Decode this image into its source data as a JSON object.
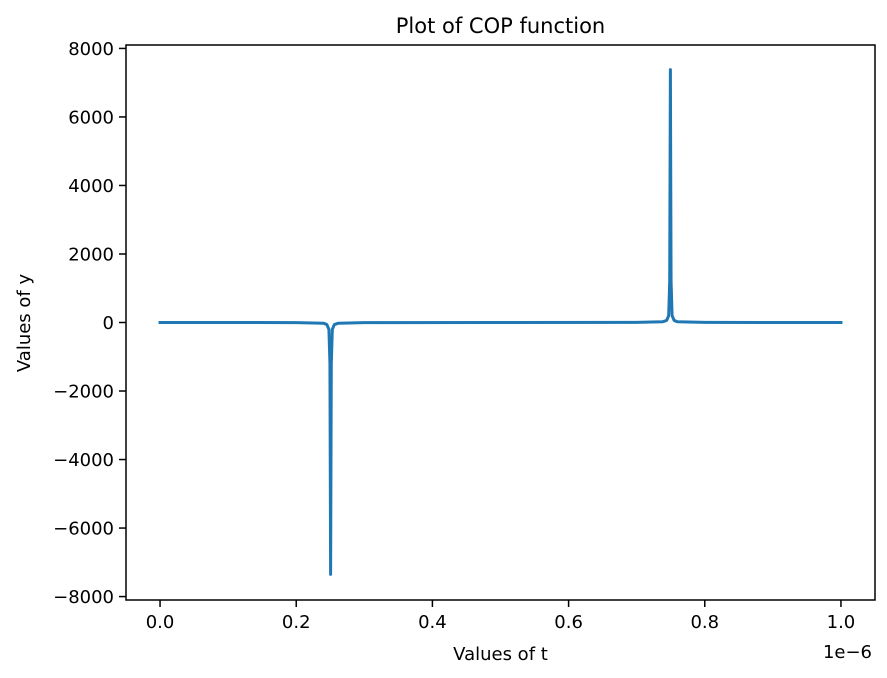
{
  "chart_data": {
    "type": "line",
    "title": "Plot of COP function",
    "xlabel": "Values of t",
    "ylabel": "Values of y",
    "x_offset_label": "1e−6",
    "xlim": [
      -0.05,
      1.05
    ],
    "ylim": [
      -8100,
      8100
    ],
    "x_ticks": [
      {
        "value": 0.0,
        "label": "0.0"
      },
      {
        "value": 0.2,
        "label": "0.2"
      },
      {
        "value": 0.4,
        "label": "0.4"
      },
      {
        "value": 0.6,
        "label": "0.6"
      },
      {
        "value": 0.8,
        "label": "0.8"
      },
      {
        "value": 1.0,
        "label": "1.0"
      }
    ],
    "y_ticks": [
      {
        "value": 8000,
        "label": "8000"
      },
      {
        "value": 6000,
        "label": "6000"
      },
      {
        "value": 4000,
        "label": "4000"
      },
      {
        "value": 2000,
        "label": "2000"
      },
      {
        "value": 0,
        "label": "0"
      },
      {
        "value": -2000,
        "label": "−2000"
      },
      {
        "value": -4000,
        "label": "−4000"
      },
      {
        "value": -6000,
        "label": "−6000"
      },
      {
        "value": -8000,
        "label": "−8000"
      }
    ],
    "grid": false,
    "series": [
      {
        "color": "#1f77b4",
        "points": [
          [
            0.0,
            0
          ],
          [
            0.1,
            0
          ],
          [
            0.2,
            -2
          ],
          [
            0.24,
            -20
          ],
          [
            0.245,
            -60
          ],
          [
            0.248,
            -200
          ],
          [
            0.2495,
            -1200
          ],
          [
            0.2505,
            -7350
          ],
          [
            0.2515,
            -1200
          ],
          [
            0.253,
            -200
          ],
          [
            0.256,
            -60
          ],
          [
            0.262,
            -20
          ],
          [
            0.3,
            -3
          ],
          [
            0.5,
            0
          ],
          [
            0.7,
            3
          ],
          [
            0.738,
            20
          ],
          [
            0.744,
            60
          ],
          [
            0.747,
            200
          ],
          [
            0.7485,
            1200
          ],
          [
            0.7495,
            7380
          ],
          [
            0.7505,
            1200
          ],
          [
            0.752,
            200
          ],
          [
            0.755,
            60
          ],
          [
            0.76,
            20
          ],
          [
            0.8,
            2
          ],
          [
            0.9,
            0
          ],
          [
            1.0,
            0
          ]
        ]
      }
    ]
  }
}
